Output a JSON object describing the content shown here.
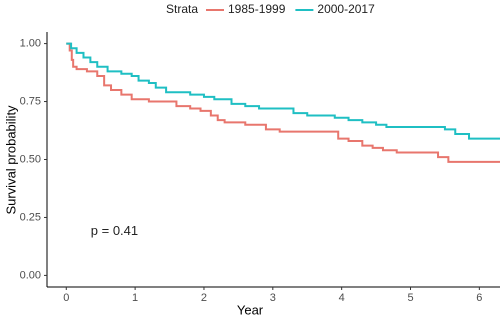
{
  "chart_data": {
    "type": "step",
    "xlabel": "Year",
    "ylabel": "Survival probability",
    "legend_title": "Strata",
    "legend_position": "top",
    "annotation": "p = 0.41",
    "annotation_x": 0.7,
    "annotation_y": 0.19,
    "xlim": [
      -0.28,
      6.3
    ],
    "ylim": [
      -0.05,
      1.05
    ],
    "xticks": [
      0,
      1,
      2,
      3,
      4,
      5,
      6
    ],
    "yticks": [
      {
        "value": 0,
        "label": "0.00"
      },
      0.25,
      {
        "value": 0.5,
        "label": "0.50"
      },
      0.75,
      {
        "value": 1,
        "label": "1.00"
      }
    ],
    "series": [
      {
        "name": "1985-1999",
        "color": "#e8766d",
        "x": [
          0,
          0.05,
          0.08,
          0.1,
          0.15,
          0.3,
          0.45,
          0.55,
          0.65,
          0.8,
          0.95,
          1.2,
          1.6,
          1.8,
          1.95,
          2.1,
          2.2,
          2.3,
          2.6,
          2.9,
          3.1,
          3.95,
          4.1,
          4.3,
          4.45,
          4.6,
          4.8,
          5.4,
          5.55,
          6.3
        ],
        "values": [
          1,
          0.97,
          0.93,
          0.9,
          0.89,
          0.88,
          0.86,
          0.82,
          0.8,
          0.78,
          0.76,
          0.75,
          0.73,
          0.72,
          0.71,
          0.69,
          0.67,
          0.66,
          0.65,
          0.63,
          0.62,
          0.59,
          0.58,
          0.56,
          0.55,
          0.54,
          0.53,
          0.51,
          0.49,
          0.49
        ]
      },
      {
        "name": "2000-2017",
        "color": "#1fbfc3",
        "x": [
          0,
          0.07,
          0.15,
          0.25,
          0.35,
          0.45,
          0.6,
          0.8,
          0.95,
          1.05,
          1.2,
          1.3,
          1.45,
          1.8,
          2.0,
          2.15,
          2.4,
          2.6,
          2.8,
          3.3,
          3.5,
          3.9,
          4.1,
          4.3,
          4.5,
          4.65,
          5.5,
          5.65,
          5.85,
          6.3
        ],
        "values": [
          1,
          0.98,
          0.96,
          0.94,
          0.92,
          0.9,
          0.88,
          0.87,
          0.86,
          0.84,
          0.83,
          0.81,
          0.79,
          0.78,
          0.77,
          0.76,
          0.74,
          0.73,
          0.72,
          0.7,
          0.69,
          0.68,
          0.67,
          0.66,
          0.65,
          0.64,
          0.63,
          0.61,
          0.59,
          0.59
        ]
      }
    ]
  }
}
